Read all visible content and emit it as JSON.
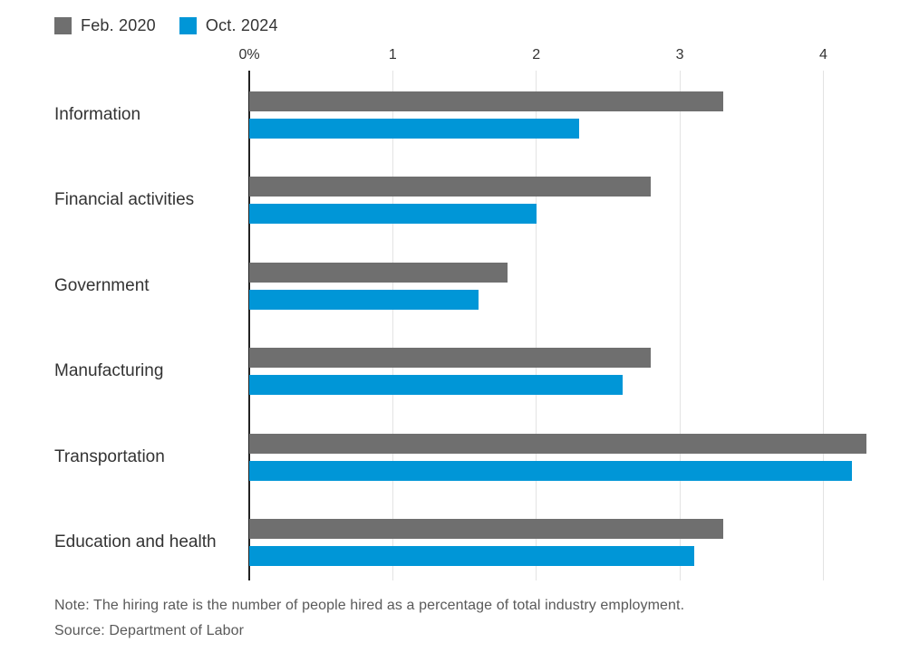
{
  "chart_data": {
    "type": "bar",
    "orientation": "horizontal",
    "categories": [
      "Information",
      "Financial activities",
      "Government",
      "Manufacturing",
      "Transportation",
      "Education and health"
    ],
    "series": [
      {
        "name": "Feb. 2020",
        "color": "#6f6f6f",
        "values": [
          3.3,
          2.8,
          1.8,
          2.8,
          4.3,
          3.3
        ]
      },
      {
        "name": "Oct. 2024",
        "color": "#0096d7",
        "values": [
          2.3,
          2.0,
          1.6,
          2.6,
          4.2,
          3.1
        ]
      }
    ],
    "xlabel": "",
    "ylabel": "",
    "xlim": [
      0,
      4.66
    ],
    "xticks": [
      {
        "value": 0,
        "label": "0%"
      },
      {
        "value": 1,
        "label": "1"
      },
      {
        "value": 2,
        "label": "2"
      },
      {
        "value": 3,
        "label": "3"
      },
      {
        "value": 4,
        "label": "4"
      }
    ],
    "grid": "vertical",
    "legend_position": "top-left",
    "axis_color": "#222222",
    "gridline_color": "#e3e3e3"
  },
  "note": "Note: The hiring rate is the number of people hired as a percentage of total industry employment.",
  "source": "Source: Department of Labor"
}
